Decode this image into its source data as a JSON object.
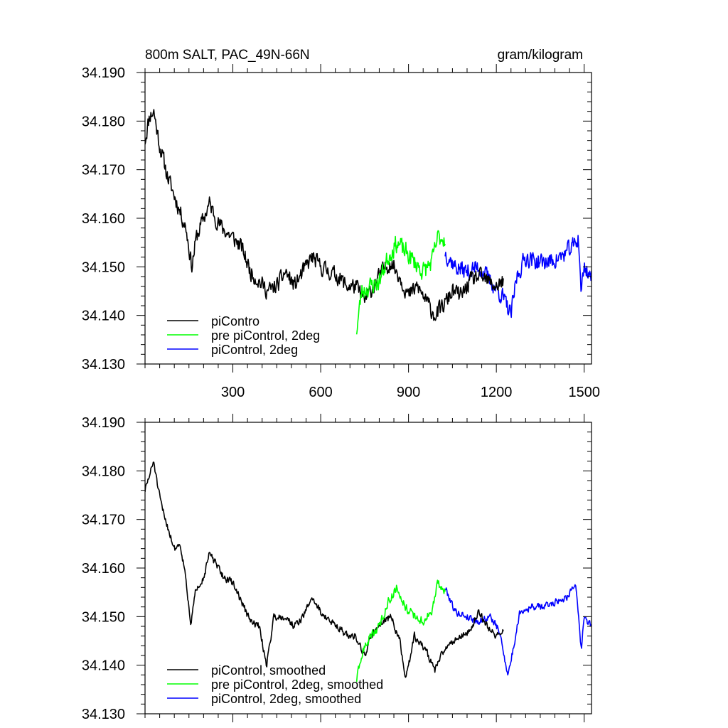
{
  "colors": {
    "piControl": "#000000",
    "pre_2deg": "#00ff00",
    "pi_2deg": "#0000ff",
    "axis": "#000000"
  },
  "chart_data": [
    {
      "type": "line",
      "title": "800m SALT, PAC_49N-66N",
      "units": "gram/kilogram",
      "xlim": [
        0,
        1525
      ],
      "ylim": [
        34.13,
        34.19
      ],
      "yticks": [
        "34.130",
        "34.140",
        "34.150",
        "34.160",
        "34.170",
        "34.180",
        "34.190"
      ],
      "yticks_values": [
        34.13,
        34.14,
        34.15,
        34.16,
        34.17,
        34.18,
        34.19
      ],
      "xticks": [
        "300",
        "600",
        "900",
        "1200",
        "1500"
      ],
      "xticks_values": [
        300,
        600,
        900,
        1200,
        1500
      ],
      "legend": "bottom-left",
      "series": [
        {
          "name": "piContro",
          "color_key": "piControl",
          "x_range": [
            0,
            1225
          ],
          "anchors": [
            [
              0,
              34.176
            ],
            [
              15,
              34.181
            ],
            [
              30,
              34.182
            ],
            [
              50,
              34.175
            ],
            [
              80,
              34.168
            ],
            [
              110,
              34.163
            ],
            [
              140,
              34.158
            ],
            [
              160,
              34.15
            ],
            [
              175,
              34.156
            ],
            [
              200,
              34.16
            ],
            [
              220,
              34.163
            ],
            [
              250,
              34.159
            ],
            [
              280,
              34.157
            ],
            [
              300,
              34.156
            ],
            [
              330,
              34.154
            ],
            [
              360,
              34.149
            ],
            [
              390,
              34.147
            ],
            [
              420,
              34.145
            ],
            [
              450,
              34.146
            ],
            [
              480,
              34.149
            ],
            [
              510,
              34.146
            ],
            [
              540,
              34.149
            ],
            [
              570,
              34.152
            ],
            [
              600,
              34.15
            ],
            [
              630,
              34.149
            ],
            [
              660,
              34.148
            ],
            [
              690,
              34.146
            ],
            [
              720,
              34.146
            ],
            [
              750,
              34.143
            ],
            [
              780,
              34.146
            ],
            [
              810,
              34.149
            ],
            [
              840,
              34.151
            ],
            [
              870,
              34.148
            ],
            [
              900,
              34.144
            ],
            [
              930,
              34.146
            ],
            [
              960,
              34.143
            ],
            [
              990,
              34.14
            ],
            [
              1020,
              34.142
            ],
            [
              1050,
              34.145
            ],
            [
              1080,
              34.144
            ],
            [
              1110,
              34.147
            ],
            [
              1140,
              34.148
            ],
            [
              1170,
              34.147
            ],
            [
              1200,
              34.146
            ],
            [
              1225,
              34.147
            ]
          ],
          "noise": 0.0028,
          "seed": 11
        },
        {
          "name": "pre piControl, 2deg",
          "color_key": "pre_2deg",
          "x_range": [
            723,
            1025
          ],
          "anchors": [
            [
              723,
              34.137
            ],
            [
              740,
              34.145
            ],
            [
              770,
              34.146
            ],
            [
              800,
              34.147
            ],
            [
              830,
              34.152
            ],
            [
              860,
              34.155
            ],
            [
              890,
              34.153
            ],
            [
              920,
              34.151
            ],
            [
              950,
              34.149
            ],
            [
              980,
              34.151
            ],
            [
              1000,
              34.156
            ],
            [
              1025,
              34.156
            ]
          ],
          "noise": 0.0032,
          "seed": 23
        },
        {
          "name": "piControl, 2deg",
          "color_key": "pi_2deg",
          "x_range": [
            1025,
            1525
          ],
          "anchors": [
            [
              1025,
              34.153
            ],
            [
              1060,
              34.15
            ],
            [
              1100,
              34.149
            ],
            [
              1140,
              34.15
            ],
            [
              1180,
              34.147
            ],
            [
              1220,
              34.144
            ],
            [
              1250,
              34.14
            ],
            [
              1270,
              34.148
            ],
            [
              1300,
              34.152
            ],
            [
              1340,
              34.151
            ],
            [
              1380,
              34.151
            ],
            [
              1420,
              34.152
            ],
            [
              1460,
              34.154
            ],
            [
              1480,
              34.156
            ],
            [
              1490,
              34.145
            ],
            [
              1500,
              34.15
            ],
            [
              1525,
              34.148
            ]
          ],
          "noise": 0.003,
          "seed": 37
        }
      ]
    },
    {
      "type": "line",
      "title": "",
      "units": "",
      "xlim": [
        0,
        1525
      ],
      "ylim": [
        34.13,
        34.19
      ],
      "yticks": [
        "34.130",
        "34.140",
        "34.150",
        "34.160",
        "34.170",
        "34.180",
        "34.190"
      ],
      "yticks_values": [
        34.13,
        34.14,
        34.15,
        34.16,
        34.17,
        34.18,
        34.19
      ],
      "xticks": [],
      "xticks_values": [
        300,
        600,
        900,
        1200,
        1500
      ],
      "legend": "bottom-left",
      "series": [
        {
          "name": "piControl, smoothed",
          "color_key": "piControl",
          "x_range": [
            0,
            1225
          ],
          "anchors": [
            [
              0,
              34.176
            ],
            [
              15,
              34.179
            ],
            [
              30,
              34.182
            ],
            [
              45,
              34.176
            ],
            [
              60,
              34.172
            ],
            [
              80,
              34.168
            ],
            [
              100,
              34.164
            ],
            [
              120,
              34.165
            ],
            [
              140,
              34.158
            ],
            [
              155,
              34.148
            ],
            [
              175,
              34.156
            ],
            [
              200,
              34.158
            ],
            [
              220,
              34.163
            ],
            [
              240,
              34.161
            ],
            [
              270,
              34.158
            ],
            [
              300,
              34.157
            ],
            [
              330,
              34.153
            ],
            [
              360,
              34.149
            ],
            [
              390,
              34.148
            ],
            [
              415,
              34.14
            ],
            [
              440,
              34.15
            ],
            [
              480,
              34.15
            ],
            [
              510,
              34.148
            ],
            [
              540,
              34.15
            ],
            [
              570,
              34.154
            ],
            [
              600,
              34.151
            ],
            [
              630,
              34.149
            ],
            [
              660,
              34.148
            ],
            [
              690,
              34.146
            ],
            [
              720,
              34.146
            ],
            [
              750,
              34.142
            ],
            [
              780,
              34.147
            ],
            [
              810,
              34.149
            ],
            [
              840,
              34.15
            ],
            [
              870,
              34.145
            ],
            [
              890,
              34.137
            ],
            [
              920,
              34.146
            ],
            [
              960,
              34.143
            ],
            [
              990,
              34.139
            ],
            [
              1020,
              34.143
            ],
            [
              1050,
              34.145
            ],
            [
              1080,
              34.146
            ],
            [
              1110,
              34.147
            ],
            [
              1140,
              34.151
            ],
            [
              1170,
              34.148
            ],
            [
              1200,
              34.146
            ],
            [
              1225,
              34.147
            ]
          ],
          "noise": 0.0012,
          "seed": 51
        },
        {
          "name": "pre piControl, 2deg, smoothed",
          "color_key": "pre_2deg",
          "x_range": [
            723,
            1025
          ],
          "anchors": [
            [
              723,
              34.137
            ],
            [
              745,
              34.143
            ],
            [
              770,
              34.146
            ],
            [
              800,
              34.148
            ],
            [
              830,
              34.153
            ],
            [
              860,
              34.156
            ],
            [
              890,
              34.152
            ],
            [
              920,
              34.15
            ],
            [
              950,
              34.149
            ],
            [
              980,
              34.151
            ],
            [
              1000,
              34.157
            ],
            [
              1025,
              34.155
            ]
          ],
          "noise": 0.0015,
          "seed": 63
        },
        {
          "name": "piControl, 2deg, smoothed",
          "color_key": "pi_2deg",
          "x_range": [
            1025,
            1525
          ],
          "anchors": [
            [
              1025,
              34.156
            ],
            [
              1060,
              34.151
            ],
            [
              1100,
              34.15
            ],
            [
              1140,
              34.149
            ],
            [
              1180,
              34.15
            ],
            [
              1210,
              34.147
            ],
            [
              1240,
              34.138
            ],
            [
              1260,
              34.144
            ],
            [
              1280,
              34.151
            ],
            [
              1320,
              34.152
            ],
            [
              1360,
              34.152
            ],
            [
              1400,
              34.153
            ],
            [
              1440,
              34.154
            ],
            [
              1470,
              34.157
            ],
            [
              1490,
              34.143
            ],
            [
              1500,
              34.15
            ],
            [
              1525,
              34.148
            ]
          ],
          "noise": 0.0012,
          "seed": 79
        }
      ]
    }
  ]
}
